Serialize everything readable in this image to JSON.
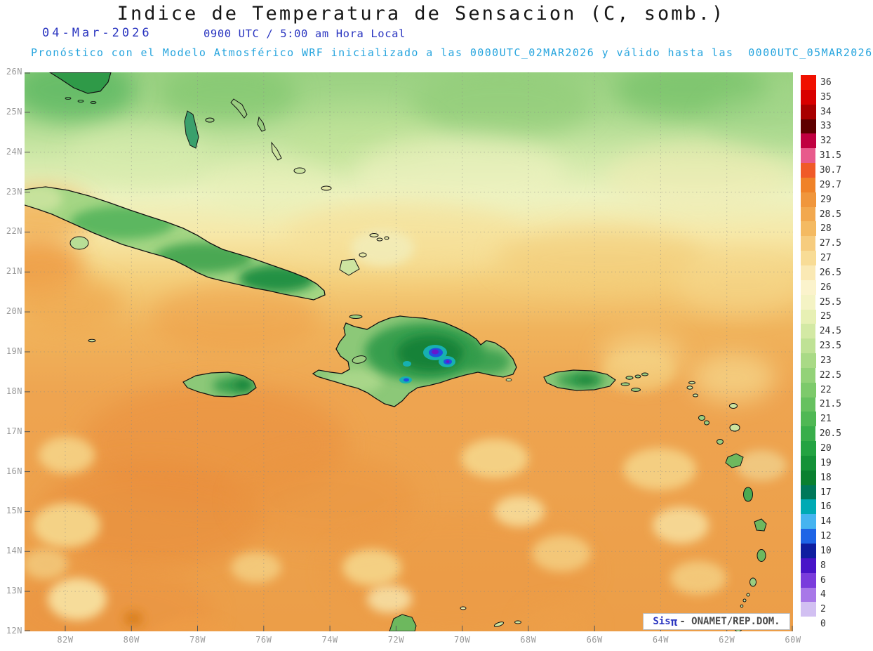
{
  "header": {
    "title": "Indice de Temperatura de Sensacion (C, somb.)",
    "date": "04-Mar-2026",
    "time_line": "0900 UTC / 5:00 am Hora Local",
    "forecast_line": "Pronóstico con el Modelo Atmosférico WRF inicializado a las 0000UTC_02MAR2026 y válido hasta las  0000UTC_05MAR2026"
  },
  "map": {
    "lat_labels": [
      "26N",
      "25N",
      "24N",
      "23N",
      "22N",
      "21N",
      "20N",
      "19N",
      "18N",
      "17N",
      "16N",
      "15N",
      "14N",
      "13N",
      "12N"
    ],
    "lon_labels": [
      "82W",
      "80W",
      "78W",
      "76W",
      "74W",
      "72W",
      "70W",
      "68W",
      "66W",
      "64W",
      "62W",
      "60W"
    ]
  },
  "colorbar": {
    "entries": [
      {
        "label": "36",
        "color": "#f01000"
      },
      {
        "label": "35",
        "color": "#d80000"
      },
      {
        "label": "34",
        "color": "#a80000"
      },
      {
        "label": "33",
        "color": "#5e0000"
      },
      {
        "label": "32",
        "color": "#c00040"
      },
      {
        "label": "31.5",
        "color": "#e85a8c"
      },
      {
        "label": "30.7",
        "color": "#f05a28"
      },
      {
        "label": "29.7",
        "color": "#f08228"
      },
      {
        "label": "29",
        "color": "#f0963c"
      },
      {
        "label": "28.5",
        "color": "#f2a84e"
      },
      {
        "label": "28",
        "color": "#f4ba62"
      },
      {
        "label": "27.5",
        "color": "#f6cc7e"
      },
      {
        "label": "27",
        "color": "#f8dc96"
      },
      {
        "label": "26.5",
        "color": "#fae9b4"
      },
      {
        "label": "26",
        "color": "#fbf3cc"
      },
      {
        "label": "25.5",
        "color": "#f4f3c4"
      },
      {
        "label": "25",
        "color": "#e7f0b4"
      },
      {
        "label": "24.5",
        "color": "#d3e9a4"
      },
      {
        "label": "23.5",
        "color": "#bfe295"
      },
      {
        "label": "23",
        "color": "#a9da86"
      },
      {
        "label": "22.5",
        "color": "#93d278"
      },
      {
        "label": "22",
        "color": "#7dca6b"
      },
      {
        "label": "21.5",
        "color": "#66c15f"
      },
      {
        "label": "21",
        "color": "#4fb854"
      },
      {
        "label": "20.5",
        "color": "#38ae4a"
      },
      {
        "label": "20",
        "color": "#23a342"
      },
      {
        "label": "19",
        "color": "#149238"
      },
      {
        "label": "18",
        "color": "#0a8030"
      },
      {
        "label": "17",
        "color": "#00785a"
      },
      {
        "label": "16",
        "color": "#00aab4"
      },
      {
        "label": "14",
        "color": "#46b4f0"
      },
      {
        "label": "12",
        "color": "#1e64e6"
      },
      {
        "label": "10",
        "color": "#0f1ea0"
      },
      {
        "label": "8",
        "color": "#4814c8"
      },
      {
        "label": "6",
        "color": "#7a3cdc"
      },
      {
        "label": "4",
        "color": "#a878e8"
      },
      {
        "label": "2",
        "color": "#d2c0f2"
      },
      {
        "label": "0",
        "color": "#ffffff"
      }
    ]
  },
  "watermark": {
    "brand": "Sis",
    "pi": "π",
    "text": "- ONAMET/REP.DOM."
  }
}
